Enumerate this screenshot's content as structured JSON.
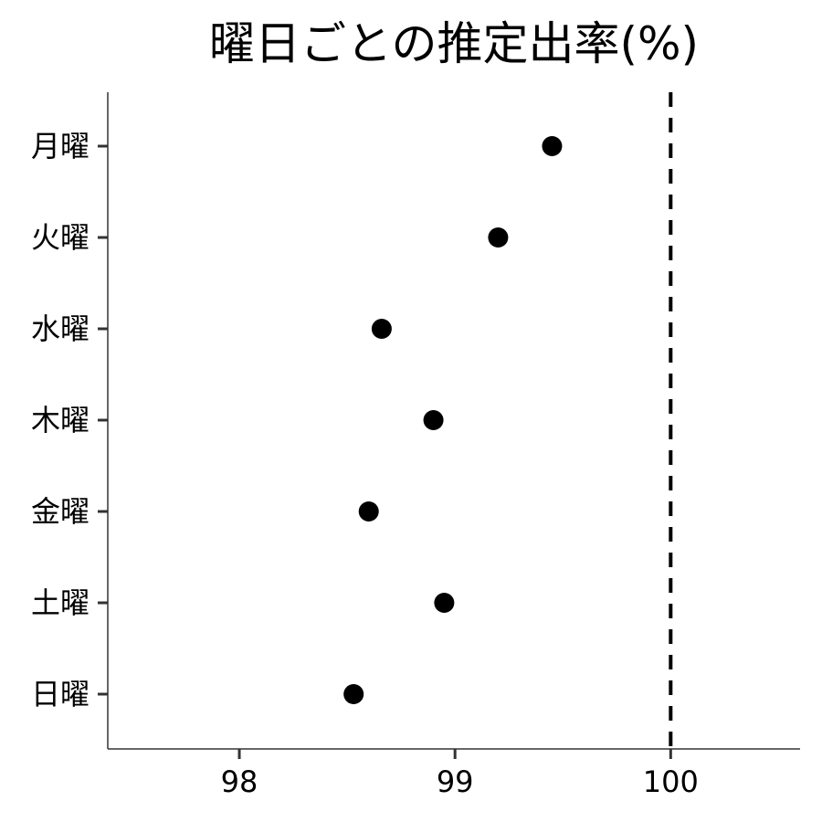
{
  "chart_data": {
    "type": "scatter",
    "title": "曜日ごとの推定出率(%)",
    "xlabel": "",
    "ylabel": "",
    "categories": [
      "月曜",
      "火曜",
      "水曜",
      "木曜",
      "金曜",
      "土曜",
      "日曜"
    ],
    "values": [
      99.45,
      99.2,
      98.66,
      98.9,
      98.6,
      98.95,
      98.53
    ],
    "xlim": [
      97.39,
      100.6
    ],
    "x_ticks": [
      98,
      99,
      100
    ],
    "x_tick_labels": [
      "98",
      "99",
      "100"
    ],
    "reference_line": {
      "x": 100,
      "style": "dashed"
    },
    "grid": false,
    "legend": "none",
    "colors": {
      "point": "#000000",
      "axis": "#333333",
      "reference_line": "#000000"
    }
  }
}
